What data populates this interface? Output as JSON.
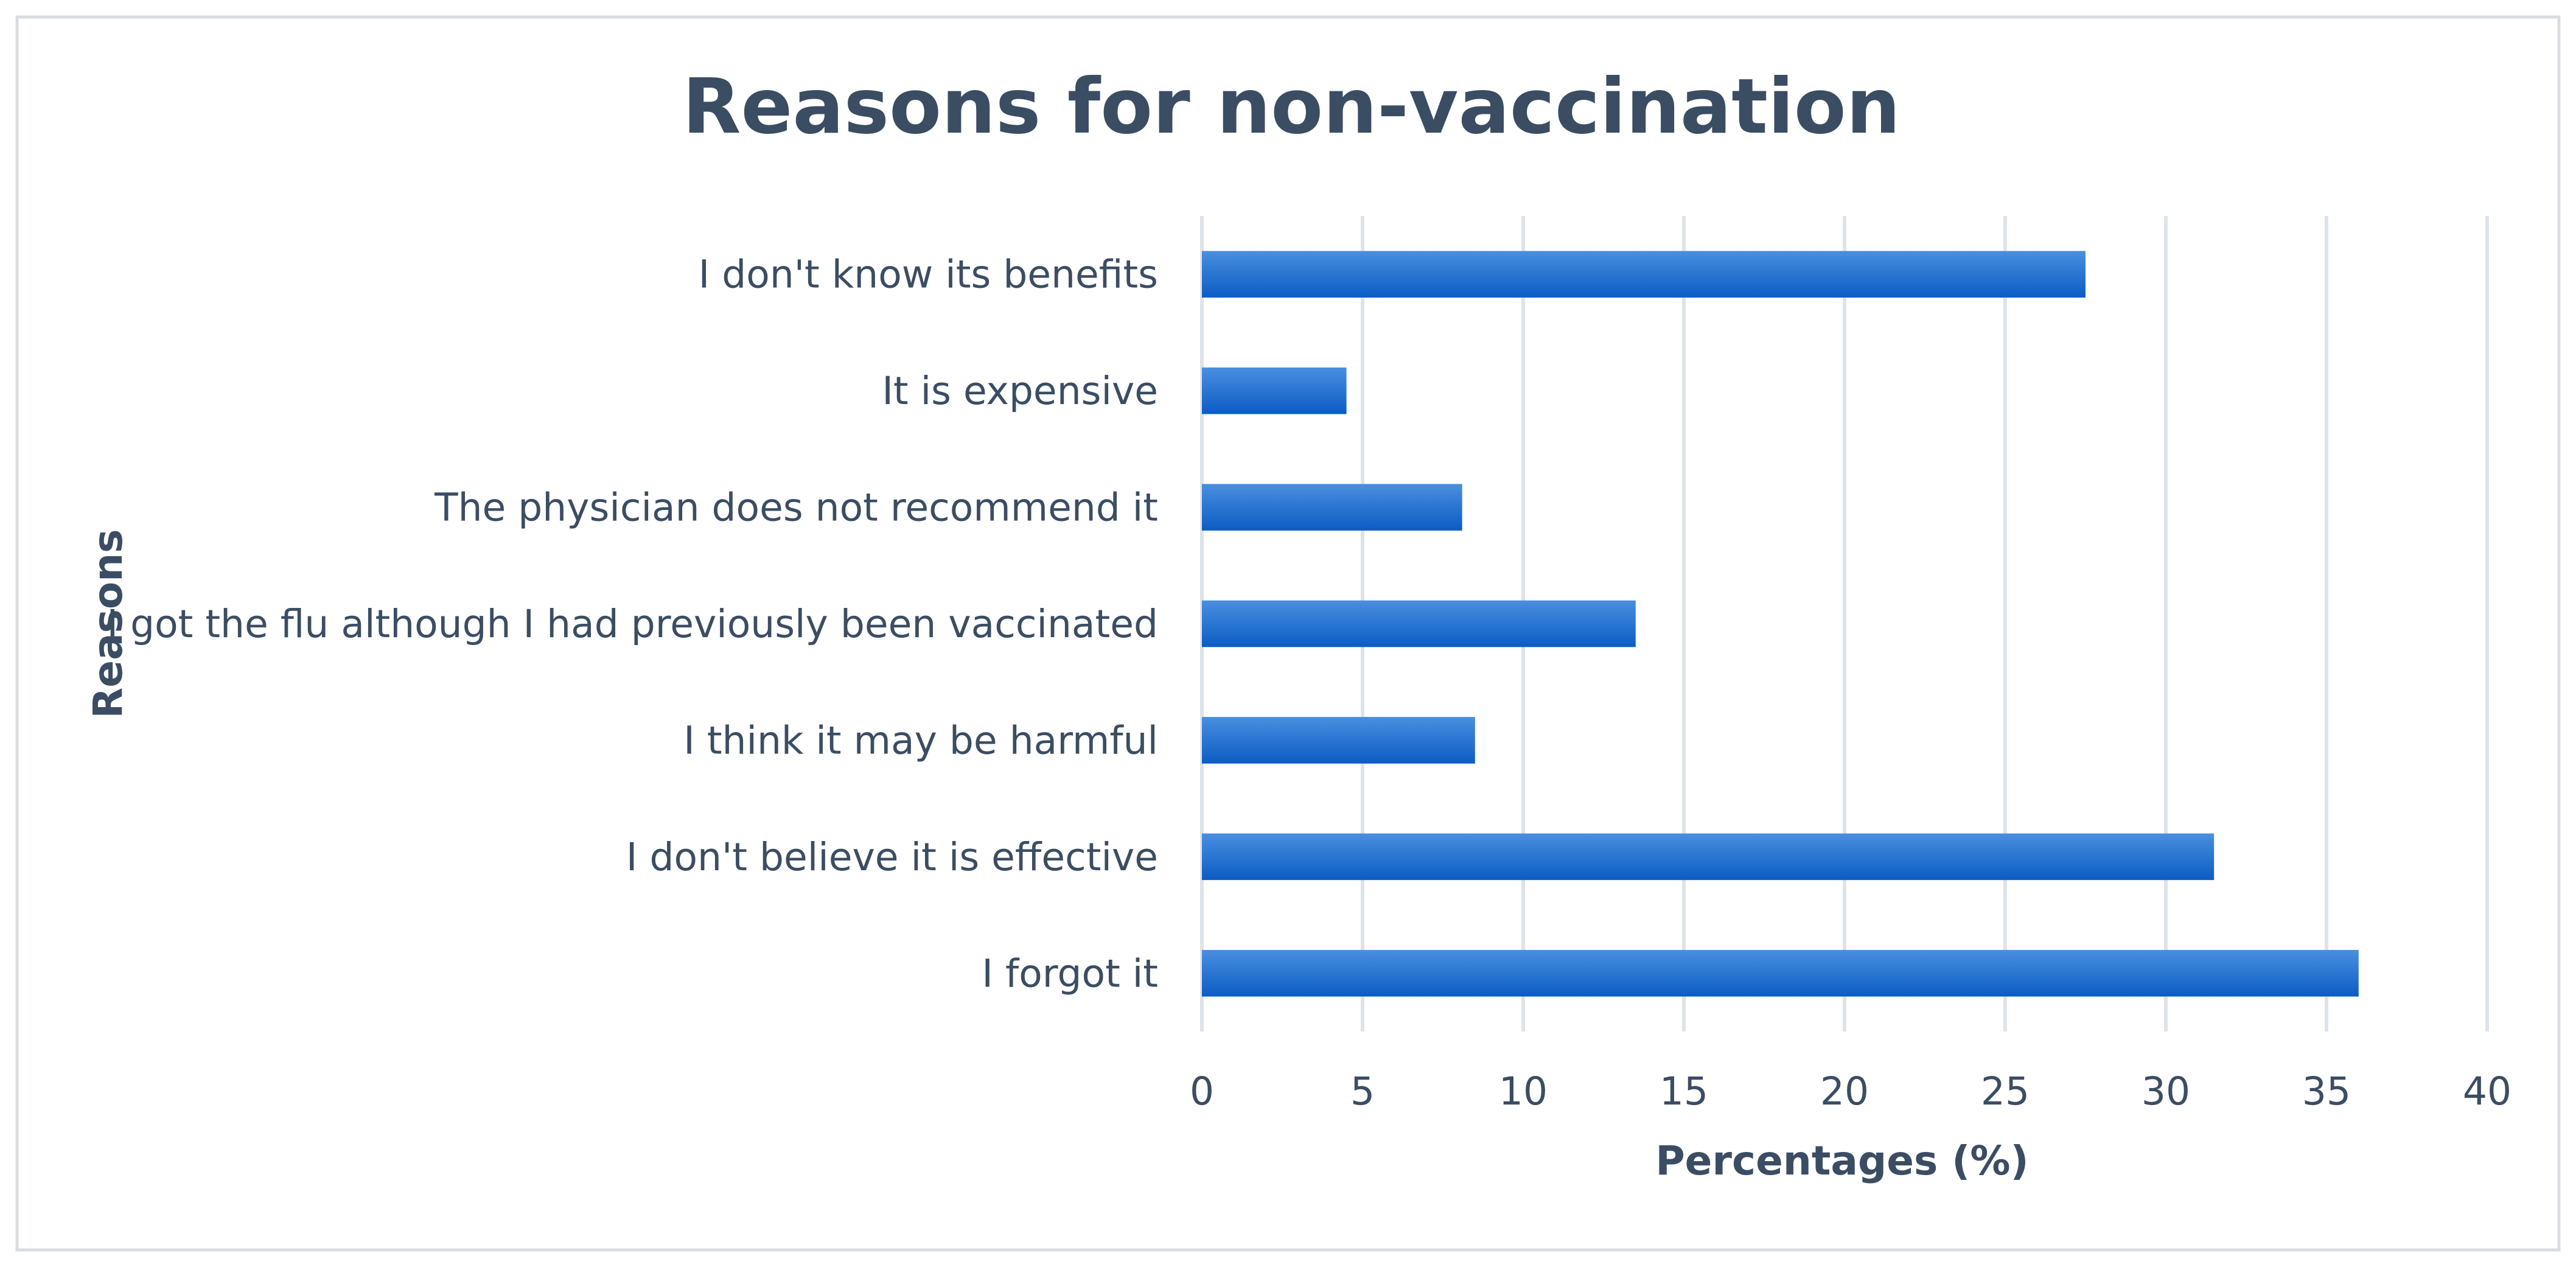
{
  "chart_data": {
    "type": "bar",
    "orientation": "horizontal",
    "title": "Reasons for non-vaccination",
    "xlabel": "Percentages (%)",
    "ylabel": "Reasons",
    "xlim": [
      0,
      40
    ],
    "xticks": [
      "0",
      "5",
      "10",
      "15",
      "20",
      "25",
      "30",
      "35",
      "40"
    ],
    "grid": true,
    "categories": [
      "I don't know its benefits",
      "It is expensive",
      "The physician does not recommend it",
      "I got the flu although I had previously been vaccinated",
      "I think it may be harmful",
      "I don't believe it is effective",
      "I forgot it"
    ],
    "values": [
      27.5,
      4.5,
      8.1,
      13.5,
      8.5,
      31.5,
      36.0
    ],
    "colors": {
      "bar": "#1565c0",
      "bar_light": "#4a8fe0",
      "grid": "#dde3ea",
      "text": "#3b4d63",
      "frame": "#d9dde2"
    }
  }
}
